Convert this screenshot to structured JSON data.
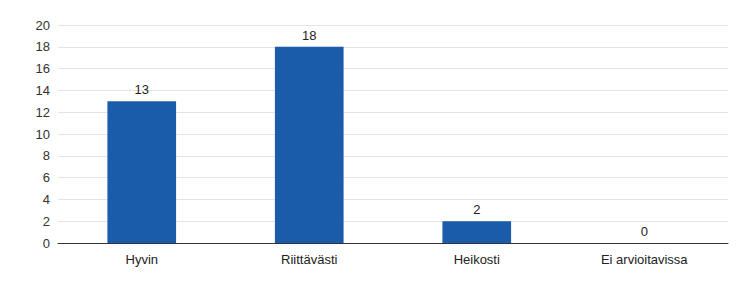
{
  "chart_data": {
    "type": "bar",
    "categories": [
      "Hyvin",
      "Riittävästi",
      "Heikosti",
      "Ei arvioitavissa"
    ],
    "values": [
      13,
      18,
      2,
      0
    ],
    "color": "#1b5caa",
    "ylim": [
      0,
      20
    ],
    "yticks": [
      0,
      2,
      4,
      6,
      8,
      10,
      12,
      14,
      16,
      18,
      20
    ],
    "grid": true,
    "data_labels": true
  }
}
